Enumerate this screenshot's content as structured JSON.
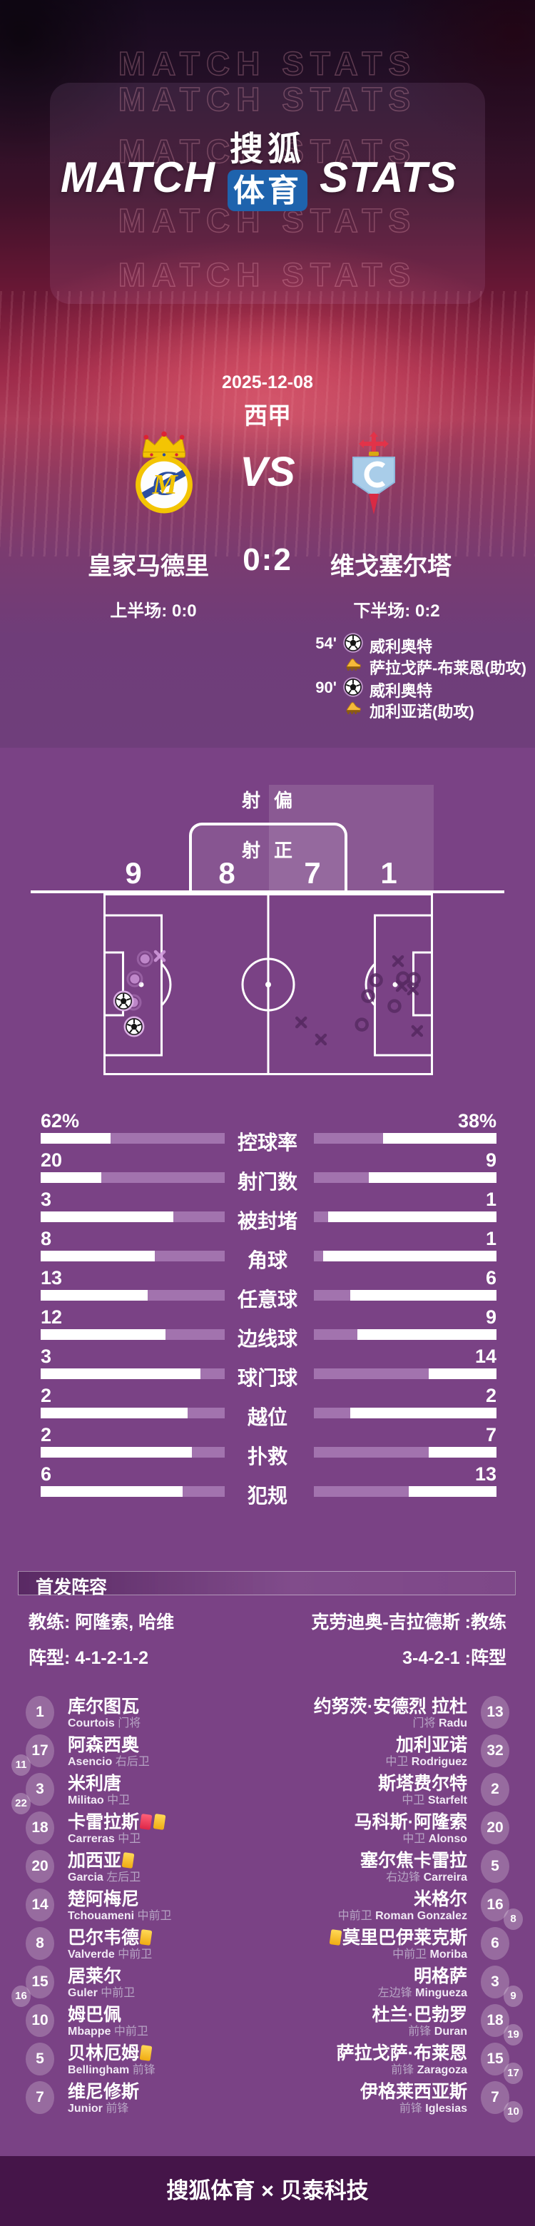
{
  "header": {
    "watermark_text": "MATCH STATS",
    "title_left": "MATCH",
    "title_right": "STATS",
    "logo_line1": "搜狐",
    "logo_line2": "体育"
  },
  "match": {
    "date": "2025-12-08",
    "league": "西甲",
    "vs_label": "VS",
    "home_name": "皇家马德里",
    "away_name": "维戈塞尔塔",
    "score": "0:2",
    "half1_label": "上半场: 0:0",
    "half2_label": "下半场: 0:2",
    "events": [
      {
        "type": "goal",
        "minute": "54'",
        "text": "威利奥特"
      },
      {
        "type": "assist",
        "minute": "",
        "text": "萨拉戈萨-布莱恩(助攻)"
      },
      {
        "type": "goal",
        "minute": "90'",
        "text": "威利奥特"
      },
      {
        "type": "assist",
        "minute": "",
        "text": "加利亚诺(助攻)"
      }
    ]
  },
  "shot_chart": {
    "off_target_label": "射偏",
    "on_target_label": "射正",
    "home_off_target": 9,
    "home_on_target": 8,
    "away_on_target": 7,
    "away_off_target": 1,
    "markers": [
      {
        "side": "away",
        "t": "x",
        "x": 17.1,
        "y": 34.5
      },
      {
        "side": "away",
        "t": "o",
        "x": 12.6,
        "y": 36.1
      },
      {
        "side": "away",
        "t": "o",
        "x": 9.5,
        "y": 47.1
      },
      {
        "side": "away",
        "t": "o",
        "x": 9.1,
        "y": 60.0
      },
      {
        "side": "away",
        "t": "goal",
        "x": 6.1,
        "y": 59.2
      },
      {
        "side": "away",
        "t": "goal",
        "x": 9.3,
        "y": 73.3
      },
      {
        "side": "home",
        "t": "x",
        "x": 89.4,
        "y": 37.3
      },
      {
        "side": "home",
        "t": "o",
        "x": 90.9,
        "y": 46.7
      },
      {
        "side": "home",
        "t": "o",
        "x": 94.2,
        "y": 47.1
      },
      {
        "side": "home",
        "t": "x",
        "x": 90.5,
        "y": 51.0
      },
      {
        "side": "home",
        "t": "x",
        "x": 93.9,
        "y": 52.9
      },
      {
        "side": "home",
        "t": "o",
        "x": 82.7,
        "y": 47.8
      },
      {
        "side": "home",
        "t": "o",
        "x": 88.3,
        "y": 62.0
      },
      {
        "side": "home",
        "t": "o",
        "x": 80.3,
        "y": 56.5
      },
      {
        "side": "home",
        "t": "o",
        "x": 78.4,
        "y": 72.2
      },
      {
        "side": "home",
        "t": "x",
        "x": 66.0,
        "y": 80.4
      },
      {
        "side": "home",
        "t": "x",
        "x": 60.0,
        "y": 71.0
      },
      {
        "side": "home",
        "t": "x",
        "x": 95.2,
        "y": 75.7
      }
    ]
  },
  "chart_data": {
    "type": "bar",
    "title": "比赛数据对比",
    "categories": [
      "控球率",
      "射门数",
      "被封堵",
      "角球",
      "任意球",
      "边线球",
      "球门球",
      "越位",
      "扑救",
      "犯规"
    ],
    "series": [
      {
        "name": "皇家马德里",
        "values": [
          "62%",
          "20",
          "3",
          "8",
          "13",
          "12",
          "3",
          "2",
          "2",
          "6"
        ]
      },
      {
        "name": "维戈塞尔塔",
        "values": [
          "38%",
          "9",
          "1",
          "1",
          "6",
          "9",
          "14",
          "2",
          "7",
          "13"
        ]
      }
    ],
    "fill_pct_home": [
      62,
      67,
      28,
      38,
      42,
      32,
      13,
      20,
      18,
      23
    ],
    "fill_pct_away": [
      38,
      30,
      8,
      5,
      20,
      24,
      63,
      20,
      63,
      52
    ],
    "legend_position": "none",
    "grid": false
  },
  "lineup": {
    "section_title": "首发阵容",
    "coach_home": "教练: 阿隆索, 哈维",
    "coach_away": "克劳迪奥-吉拉德斯 :教练",
    "formation_home": "阵型: 4-1-2-1-2",
    "formation_away": "3-4-2-1 :阵型",
    "home": [
      {
        "num": "1",
        "sub": "",
        "cn": "库尔图瓦",
        "en": "Courtois",
        "pos": "门将",
        "cards": []
      },
      {
        "num": "17",
        "sub": "11",
        "cn": "阿森西奥",
        "en": "Asencio",
        "pos": "右后卫",
        "cards": []
      },
      {
        "num": "3",
        "sub": "22",
        "cn": "米利唐",
        "en": "Militao",
        "pos": "中卫",
        "cards": []
      },
      {
        "num": "18",
        "sub": "",
        "cn": "卡雷拉斯",
        "en": "Carreras",
        "pos": "中卫",
        "cards": [
          "r",
          "y"
        ]
      },
      {
        "num": "20",
        "sub": "",
        "cn": "加西亚",
        "en": "Garcia",
        "pos": "左后卫",
        "cards": [
          "y"
        ]
      },
      {
        "num": "14",
        "sub": "",
        "cn": "楚阿梅尼",
        "en": "Tchouameni",
        "pos": "中前卫",
        "cards": []
      },
      {
        "num": "8",
        "sub": "",
        "cn": "巴尔韦德",
        "en": "Valverde",
        "pos": "中前卫",
        "cards": [
          "y"
        ]
      },
      {
        "num": "15",
        "sub": "16",
        "cn": "居莱尔",
        "en": "Guler",
        "pos": "中前卫",
        "cards": []
      },
      {
        "num": "10",
        "sub": "",
        "cn": "姆巴佩",
        "en": "Mbappe",
        "pos": "中前卫",
        "cards": []
      },
      {
        "num": "5",
        "sub": "",
        "cn": "贝林厄姆",
        "en": "Bellingham",
        "pos": "前锋",
        "cards": [
          "y"
        ]
      },
      {
        "num": "7",
        "sub": "",
        "cn": "维尼修斯",
        "en": "Junior",
        "pos": "前锋",
        "cards": []
      }
    ],
    "away": [
      {
        "num": "13",
        "sub": "",
        "cn": "约努茨·安德烈 拉杜",
        "en": "Radu",
        "pos": "门将",
        "cards": []
      },
      {
        "num": "32",
        "sub": "",
        "cn": "加利亚诺",
        "en": "Rodriguez",
        "pos": "中卫",
        "cards": []
      },
      {
        "num": "2",
        "sub": "",
        "cn": "斯塔费尔特",
        "en": "Starfelt",
        "pos": "中卫",
        "cards": []
      },
      {
        "num": "20",
        "sub": "",
        "cn": "马科斯·阿隆索",
        "en": "Alonso",
        "pos": "中卫",
        "cards": []
      },
      {
        "num": "5",
        "sub": "",
        "cn": "塞尔焦卡雷拉",
        "en": "Carreira",
        "pos": "右边锋",
        "cards": []
      },
      {
        "num": "16",
        "sub": "8",
        "cn": "米格尔",
        "en": "Roman Gonzalez",
        "pos": "中前卫",
        "cards": []
      },
      {
        "num": "6",
        "sub": "",
        "cn": "莫里巴伊莱克斯",
        "en": "Moriba",
        "pos": "中前卫",
        "cards": [
          "y"
        ]
      },
      {
        "num": "3",
        "sub": "9",
        "cn": "明格萨",
        "en": "Mingueza",
        "pos": "左边锋",
        "cards": []
      },
      {
        "num": "18",
        "sub": "19",
        "cn": "杜兰·巴勃罗",
        "en": "Duran",
        "pos": "前锋",
        "cards": []
      },
      {
        "num": "15",
        "sub": "17",
        "cn": "萨拉戈萨·布莱恩",
        "en": "Zaragoza",
        "pos": "前锋",
        "cards": []
      },
      {
        "num": "7",
        "sub": "10",
        "cn": "伊格莱西亚斯",
        "en": "Iglesias",
        "pos": "前锋",
        "cards": []
      }
    ]
  },
  "footer": {
    "text": "搜狐体育 × 贝泰科技"
  },
  "colors": {
    "bg_main": "#7a4285",
    "bg_footer": "#451549",
    "bar_fill": "#a273ae",
    "logo_blue": "#1e63ad",
    "card_yellow": "#f4c01e",
    "card_red": "#e8415e",
    "marker_home": "#582a63",
    "marker_away": "#cf98da",
    "position_gray": "#b7a4c4"
  }
}
